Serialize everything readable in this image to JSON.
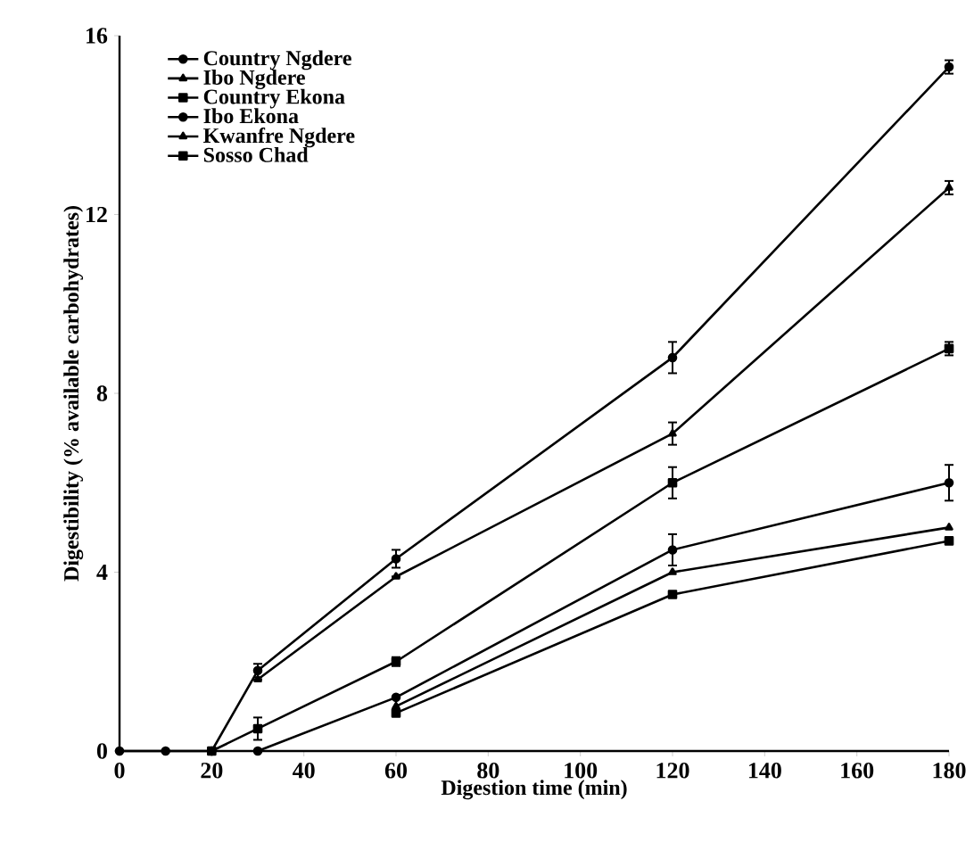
{
  "chart_data": {
    "type": "line",
    "xlabel": "Digestion time (min)",
    "ylabel": "Digestibility (% available carbohydrates)",
    "x": [
      0,
      10,
      20,
      30,
      60,
      120,
      180
    ],
    "xlim": [
      0,
      180
    ],
    "xticks": [
      0,
      20,
      40,
      60,
      80,
      100,
      120,
      140,
      160,
      180
    ],
    "ylim": [
      0,
      16
    ],
    "yticks": [
      0,
      4,
      8,
      12,
      16
    ],
    "legend": "top left",
    "grid": false,
    "line_style": "solid",
    "series": [
      {
        "name": "Country Ngdere",
        "color": "#000000",
        "marker": "circle",
        "values": [
          0,
          0,
          0,
          1.8,
          4.3,
          8.8,
          15.3
        ],
        "errors": [
          null,
          null,
          null,
          0.15,
          0.2,
          0.35,
          0.15
        ]
      },
      {
        "name": "Ibo Ngdere",
        "color": "#000000",
        "marker": "triangle",
        "values": [
          null,
          null,
          null,
          1.6,
          3.9,
          7.1,
          12.6
        ],
        "errors": [
          null,
          null,
          null,
          null,
          null,
          0.25,
          0.15
        ]
      },
      {
        "name": "Country Ekona",
        "color": "#000000",
        "marker": "square",
        "values": [
          null,
          null,
          0,
          0.5,
          2.0,
          6.0,
          9.0
        ],
        "errors": [
          null,
          null,
          null,
          0.25,
          0.1,
          0.35,
          0.15
        ]
      },
      {
        "name": "Ibo Ekona",
        "color": "#000000",
        "marker": "circle",
        "values": [
          null,
          null,
          null,
          0,
          1.2,
          4.5,
          6.0
        ],
        "errors": [
          null,
          null,
          null,
          null,
          null,
          0.35,
          0.4
        ]
      },
      {
        "name": "Kwanfre Ngdere",
        "color": "#000000",
        "marker": "triangle",
        "values": [
          null,
          null,
          null,
          null,
          1.0,
          4.0,
          5.0
        ]
      },
      {
        "name": "Sosso Chad",
        "color": "#000000",
        "marker": "square",
        "values": [
          null,
          null,
          null,
          null,
          0.85,
          3.5,
          4.7
        ]
      }
    ]
  }
}
